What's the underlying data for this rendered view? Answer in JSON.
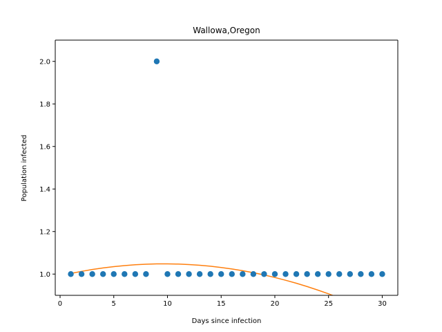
{
  "chart_data": {
    "type": "scatter",
    "title": "Wallowa,Oregon",
    "xlabel": "Days since infection",
    "ylabel": "Population infected",
    "xlim": [
      -0.45,
      31.45
    ],
    "ylim": [
      0.9,
      2.1
    ],
    "xticks": [
      0,
      5,
      10,
      15,
      20,
      25,
      30
    ],
    "yticks": [
      1.0,
      1.2,
      1.4,
      1.6,
      1.8,
      2.0
    ],
    "xtick_labels": [
      "0",
      "5",
      "10",
      "15",
      "20",
      "25",
      "30"
    ],
    "ytick_labels": [
      "1.0",
      "1.2",
      "1.4",
      "1.6",
      "1.8",
      "2.0"
    ],
    "grid": false,
    "series": [
      {
        "type": "scatter",
        "color": "#1f77b4",
        "x": [
          1,
          2,
          3,
          4,
          5,
          6,
          7,
          8,
          9,
          10,
          11,
          12,
          13,
          14,
          15,
          16,
          17,
          18,
          19,
          20,
          21,
          22,
          23,
          24,
          25,
          26,
          27,
          28,
          29,
          30
        ],
        "y": [
          1,
          1,
          1,
          1,
          1,
          1,
          1,
          1,
          2,
          1,
          1,
          1,
          1,
          1,
          1,
          1,
          1,
          1,
          1,
          1,
          1,
          1,
          1,
          1,
          1,
          1,
          1,
          1,
          1,
          1
        ]
      },
      {
        "type": "line",
        "color": "#ff7f0e",
        "x": [
          1,
          2,
          3,
          4,
          5,
          6,
          7,
          8,
          9,
          10,
          11,
          12,
          13,
          14,
          15,
          16,
          17,
          18,
          19,
          20,
          21,
          22,
          23,
          24,
          25,
          26,
          27,
          28,
          29,
          30
        ],
        "y": [
          1.003,
          1.0128,
          1.0214,
          1.0288,
          1.035,
          1.04,
          1.0438,
          1.0464,
          1.0478,
          1.048,
          1.047,
          1.0448,
          1.0414,
          1.0368,
          1.031,
          1.024,
          1.0158,
          1.0064,
          0.9958,
          0.984,
          0.971,
          0.9568,
          0.9414,
          0.9248,
          0.907,
          0.888,
          0.8678,
          0.8464,
          0.8238,
          0.8
        ]
      }
    ]
  }
}
